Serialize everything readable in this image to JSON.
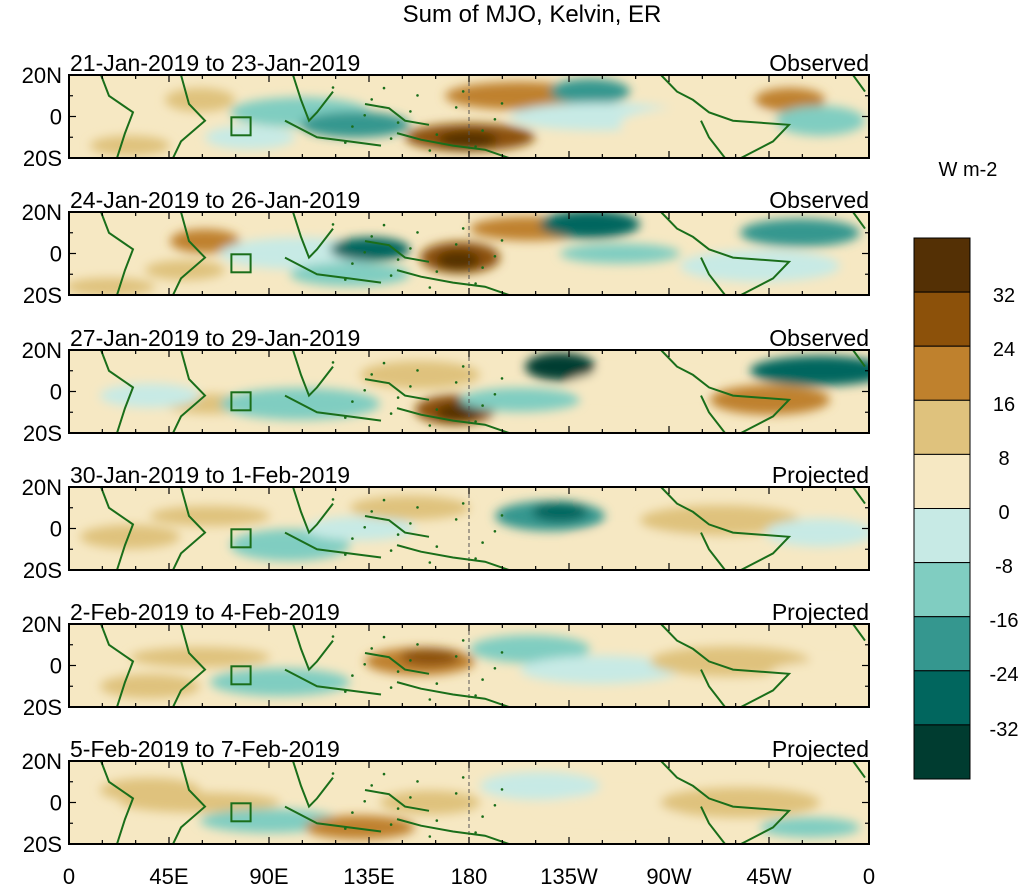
{
  "title": "Sum of MJO, Kelvin, ER",
  "panels": [
    {
      "date_range": "21-Jan-2019 to 23-Jan-2019",
      "status": "Observed"
    },
    {
      "date_range": "24-Jan-2019 to 26-Jan-2019",
      "status": "Observed"
    },
    {
      "date_range": "27-Jan-2019 to 29-Jan-2019",
      "status": "Observed"
    },
    {
      "date_range": "30-Jan-2019 to 1-Feb-2019",
      "status": "Projected"
    },
    {
      "date_range": "2-Feb-2019 to 4-Feb-2019",
      "status": "Projected"
    },
    {
      "date_range": "5-Feb-2019 to 7-Feb-2019",
      "status": "Projected"
    }
  ],
  "lat_labels": [
    "20N",
    "0",
    "20S"
  ],
  "lon_labels": [
    "0",
    "45E",
    "90E",
    "135E",
    "180",
    "135W",
    "90W",
    "45W",
    "0"
  ],
  "colorbar": {
    "unit": "W m-2",
    "tick_labels": [
      "32",
      "24",
      "16",
      "8",
      "0",
      "-8",
      "-16",
      "-24",
      "-32"
    ],
    "colors": [
      "#543005",
      "#8c510a",
      "#bf812d",
      "#dfc27d",
      "#f6e8c3",
      "#c7eae5",
      "#80cdc1",
      "#35978f",
      "#01665e",
      "#003c30"
    ]
  },
  "colors": {
    "coastline": "#1a6e1a",
    "dateline": "#555555"
  }
}
